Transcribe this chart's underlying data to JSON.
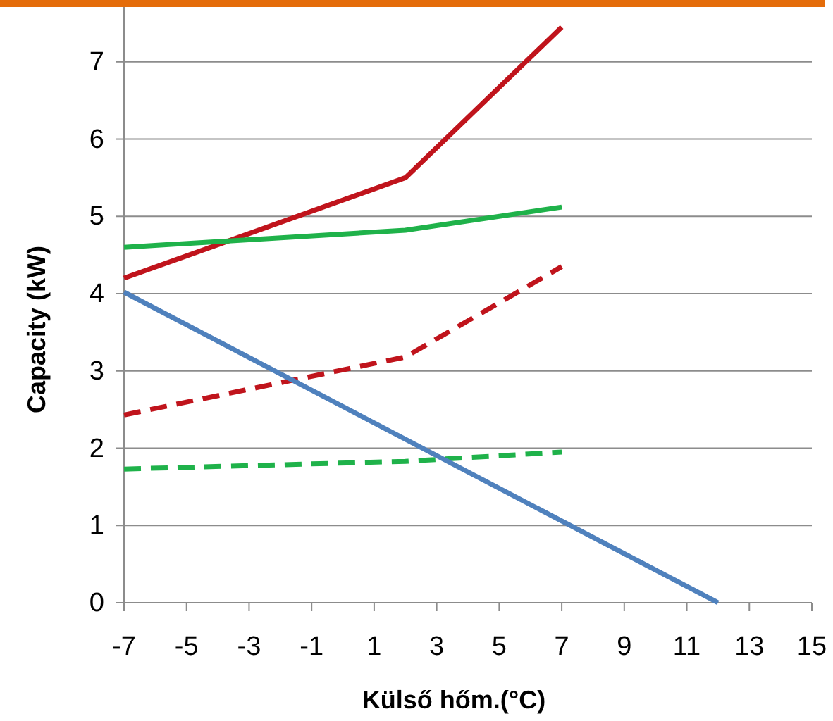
{
  "chart_data": {
    "type": "line",
    "xlabel": "Külső hőm.(°C)",
    "ylabel": "Capacity (kW)",
    "xlim": [
      -7,
      15
    ],
    "xticks": [
      -7,
      -5,
      -3,
      -1,
      1,
      3,
      5,
      7,
      9,
      11,
      13,
      15
    ],
    "ylim": [
      0,
      7.8
    ],
    "yticks": [
      0,
      1,
      2,
      3,
      4,
      5,
      6,
      7
    ],
    "grid": "y",
    "series": [
      {
        "color": "#c0141c",
        "line_style": "solid",
        "x": [
          -7,
          2,
          7
        ],
        "values": [
          4.2,
          5.5,
          7.45
        ]
      },
      {
        "color": "#1fb24a",
        "line_style": "solid",
        "x": [
          -7,
          2,
          7
        ],
        "values": [
          4.6,
          4.82,
          5.12
        ]
      },
      {
        "color": "#c0141c",
        "line_style": "dashed",
        "x": [
          -7,
          2,
          7
        ],
        "values": [
          2.43,
          3.18,
          4.35
        ]
      },
      {
        "color": "#1fb24a",
        "line_style": "dashed",
        "x": [
          -7,
          2,
          7
        ],
        "values": [
          1.73,
          1.83,
          1.95
        ]
      },
      {
        "color": "#4f81bd",
        "line_style": "solid",
        "x": [
          -7,
          12
        ],
        "values": [
          4.02,
          0
        ]
      }
    ]
  }
}
